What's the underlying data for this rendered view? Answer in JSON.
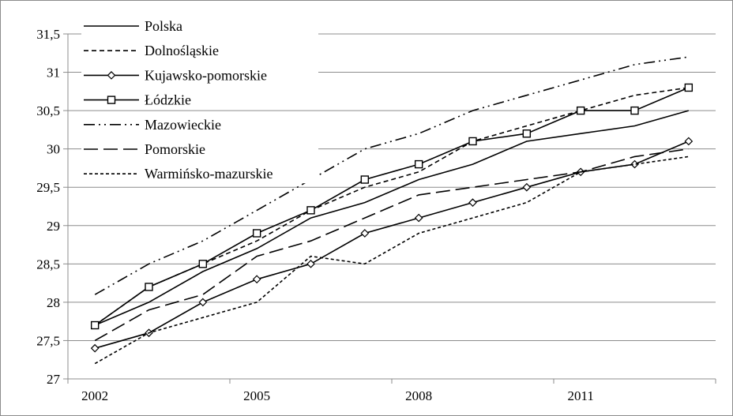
{
  "chart_data": {
    "type": "line",
    "title": "",
    "xlabel": "",
    "ylabel": "",
    "x": [
      2002,
      2003,
      2004,
      2005,
      2006,
      2007,
      2008,
      2009,
      2010,
      2011,
      2012,
      2013
    ],
    "x_tick_labels": [
      "2002",
      "2005",
      "2008",
      "2011"
    ],
    "y_tick_labels": [
      "27",
      "27,5",
      "28",
      "28,5",
      "29",
      "29,5",
      "30",
      "30,5",
      "31",
      "31,5"
    ],
    "ylim": [
      27,
      31.5
    ],
    "grid": "horizontal",
    "legend_position": "top-left",
    "series": [
      {
        "name": "Polska",
        "style": "solid",
        "marker": "none",
        "color": "#000000",
        "values": [
          27.7,
          28.0,
          28.4,
          28.7,
          29.1,
          29.3,
          29.6,
          29.8,
          30.1,
          30.2,
          30.3,
          30.5
        ]
      },
      {
        "name": "Dolnośląskie",
        "style": "dash-short",
        "marker": "none",
        "color": "#000000",
        "values": [
          27.7,
          28.2,
          28.5,
          28.8,
          29.2,
          29.5,
          29.7,
          30.1,
          30.3,
          30.5,
          30.7,
          30.8
        ]
      },
      {
        "name": "Kujawsko-pomorskie",
        "style": "solid",
        "marker": "diamond",
        "color": "#000000",
        "values": [
          27.4,
          27.6,
          28.0,
          28.3,
          28.5,
          28.9,
          29.1,
          29.3,
          29.5,
          29.7,
          29.8,
          30.1
        ]
      },
      {
        "name": "Łódzkie",
        "style": "solid",
        "marker": "square",
        "color": "#000000",
        "values": [
          27.7,
          28.2,
          28.5,
          28.9,
          29.2,
          29.6,
          29.8,
          30.1,
          30.2,
          30.5,
          30.5,
          30.8
        ]
      },
      {
        "name": "Mazowieckie",
        "style": "dash-dot-dot",
        "marker": "none",
        "color": "#000000",
        "values": [
          28.1,
          28.5,
          28.8,
          29.2,
          29.6,
          30.0,
          30.2,
          30.5,
          30.7,
          30.9,
          31.1,
          31.2
        ]
      },
      {
        "name": "Pomorskie",
        "style": "dash-long",
        "marker": "none",
        "color": "#000000",
        "values": [
          27.5,
          27.9,
          28.1,
          28.6,
          28.8,
          29.1,
          29.4,
          29.5,
          29.6,
          29.7,
          29.9,
          30.0
        ]
      },
      {
        "name": "Warmińsko-mazurskie",
        "style": "dotted",
        "marker": "none",
        "color": "#000000",
        "values": [
          27.2,
          27.6,
          27.8,
          28.0,
          28.6,
          28.5,
          28.9,
          29.1,
          29.3,
          29.7,
          29.8,
          29.9
        ]
      }
    ]
  }
}
